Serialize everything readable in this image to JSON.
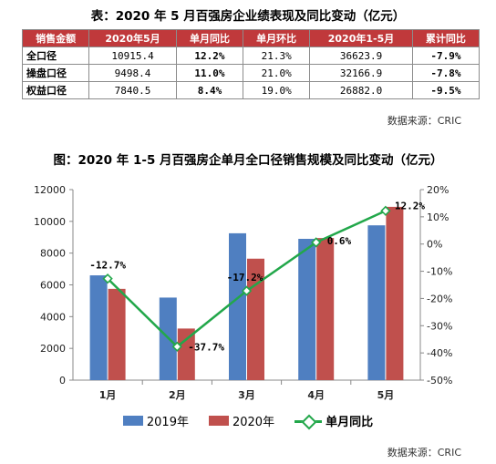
{
  "table": {
    "title": "表：2020 年 5 月百强房企业绩表现及同比变动（亿元）",
    "headers": [
      "销售金额",
      "2020年5月",
      "单月同比",
      "单月环比",
      "2020年1-5月",
      "累计同比"
    ],
    "rows": [
      {
        "name": "全口径",
        "may": "10915.4",
        "yoy": "12.2%",
        "mom": "21.3%",
        "ytd": "36623.9",
        "ytd_yoy": "-7.9%"
      },
      {
        "name": "操盘口径",
        "may": "9498.4",
        "yoy": "11.0%",
        "mom": "21.0%",
        "ytd": "32166.9",
        "ytd_yoy": "-7.8%"
      },
      {
        "name": "权益口径",
        "may": "7840.5",
        "yoy": "8.4%",
        "mom": "19.0%",
        "ytd": "26882.0",
        "ytd_yoy": "-9.5%"
      }
    ],
    "source": "数据来源：CRIC"
  },
  "chart_title": "图：2020 年 1-5 月百强房企单月全口径销售规模及同比变动（亿元）",
  "chart_source": "数据来源：CRIC",
  "colors": {
    "s2019": "#4f7fc1",
    "s2020": "#c0504d",
    "line": "#22a74a"
  },
  "chart_data": {
    "type": "bar",
    "categories": [
      "1月",
      "2月",
      "3月",
      "4月",
      "5月"
    ],
    "series": [
      {
        "name": "2019年",
        "values": [
          6600,
          5200,
          9250,
          8900,
          9750
        ]
      },
      {
        "name": "2020年",
        "values": [
          5750,
          3250,
          7650,
          8950,
          10915
        ]
      }
    ],
    "line_series": {
      "name": "单月同比",
      "values": [
        -12.7,
        -37.7,
        -17.2,
        0.6,
        12.2
      ],
      "labels": [
        "-12.7%",
        "-37.7%",
        "-17.2%",
        "0.6%",
        "12.2%"
      ]
    },
    "ylim": [
      0,
      12000
    ],
    "yticks": [
      "0",
      "2000",
      "4000",
      "6000",
      "8000",
      "10000",
      "12000"
    ],
    "y2lim": [
      -50,
      20
    ],
    "y2ticks": [
      "-50%",
      "-40%",
      "-30%",
      "-20%",
      "-10%",
      "0%",
      "10%",
      "20%"
    ],
    "legend": [
      "2019年",
      "2020年",
      "单月同比"
    ]
  }
}
